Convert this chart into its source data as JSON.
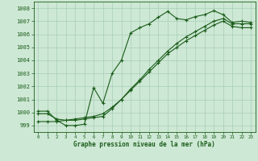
{
  "title": "Graphe pression niveau de la mer (hPa)",
  "background_color": "#cde8d4",
  "grid_color": "#a8cdb8",
  "line_color": "#1a5c1a",
  "xlim": [
    -0.5,
    23.5
  ],
  "ylim": [
    998.5,
    1008.5
  ],
  "xticks": [
    0,
    1,
    2,
    3,
    4,
    5,
    6,
    7,
    8,
    9,
    10,
    11,
    12,
    13,
    14,
    15,
    16,
    17,
    18,
    19,
    20,
    21,
    22,
    23
  ],
  "yticks": [
    999,
    1000,
    1001,
    1002,
    1003,
    1004,
    1005,
    1006,
    1007,
    1008
  ],
  "series1_x": [
    0,
    1,
    2,
    3,
    4,
    5,
    6,
    7,
    8,
    9,
    10,
    11,
    12,
    13,
    14,
    15,
    16,
    17,
    18,
    19,
    20,
    21,
    22,
    23
  ],
  "series1_y": [
    1000.1,
    1000.1,
    999.4,
    999.0,
    999.0,
    999.1,
    1001.9,
    1000.7,
    1003.0,
    1004.0,
    1006.1,
    1006.5,
    1006.8,
    1007.3,
    1007.75,
    1007.2,
    1007.1,
    1007.35,
    1007.5,
    1007.8,
    1007.5,
    1006.9,
    1007.0,
    1006.9
  ],
  "series2_x": [
    0,
    1,
    2,
    3,
    4,
    5,
    6,
    7,
    8,
    9,
    10,
    11,
    12,
    13,
    14,
    15,
    16,
    17,
    18,
    19,
    20,
    21,
    22,
    23
  ],
  "series2_y": [
    999.9,
    999.9,
    999.5,
    999.4,
    999.4,
    999.5,
    999.6,
    999.7,
    1000.3,
    1001.0,
    1001.8,
    1002.5,
    1003.3,
    1004.0,
    1004.7,
    1005.3,
    1005.8,
    1006.2,
    1006.6,
    1007.0,
    1007.2,
    1006.8,
    1006.8,
    1006.8
  ],
  "series3_x": [
    0,
    1,
    2,
    3,
    4,
    5,
    6,
    7,
    8,
    9,
    10,
    11,
    12,
    13,
    14,
    15,
    16,
    17,
    18,
    19,
    20,
    21,
    22,
    23
  ],
  "series3_y": [
    999.3,
    999.3,
    999.3,
    999.4,
    999.5,
    999.6,
    999.7,
    999.9,
    1000.4,
    1001.0,
    1001.7,
    1002.4,
    1003.1,
    1003.8,
    1004.5,
    1005.0,
    1005.5,
    1005.9,
    1006.3,
    1006.7,
    1007.0,
    1006.6,
    1006.5,
    1006.5
  ]
}
